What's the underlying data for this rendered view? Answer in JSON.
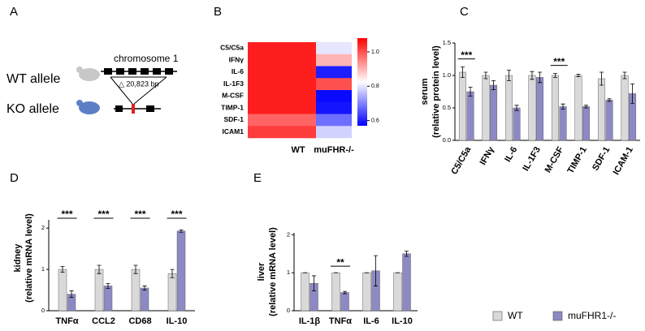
{
  "figure": {
    "panel_labels": [
      "A",
      "B",
      "C",
      "D",
      "E"
    ],
    "diagram": {
      "chromosome": "chromosome 1",
      "wt_allele": "WT allele",
      "ko_allele": "KO allele",
      "deletion": "△ 20,823 bp"
    }
  },
  "chart_data": [
    {
      "type": "heatmap",
      "rows": [
        "C5/C5a",
        "IFNγ",
        "IL-6",
        "IL-1F3",
        "M-CSF",
        "TIMP-1",
        "SDF-1",
        "ICAM1"
      ],
      "columns": [
        "WT",
        "muFHR-/-"
      ],
      "values": [
        [
          1.05,
          0.8
        ],
        [
          1.05,
          0.9
        ],
        [
          1.05,
          0.6
        ],
        [
          1.05,
          1.0
        ],
        [
          1.05,
          0.58
        ],
        [
          1.05,
          0.59
        ],
        [
          0.98,
          0.68
        ],
        [
          1.02,
          0.78
        ]
      ],
      "zlim": [
        0.57,
        1.08
      ],
      "zticks": [
        {
          "value": 1.0,
          "label": "1.0"
        },
        {
          "value": 0.8,
          "label": "0.8"
        },
        {
          "value": 0.6,
          "label": "0.6"
        }
      ],
      "colormap": [
        "#0000ff",
        "#ffffff",
        "#ff0000"
      ]
    },
    {
      "type": "bar",
      "ylabel": [
        "serum",
        "(relative protein level)"
      ],
      "categories": [
        "C5/C5a",
        "IFNγ",
        "IL-6",
        "IL-1F3",
        "M-CSF",
        "TIMP-1",
        "SDF-1",
        "ICAM-1"
      ],
      "series": [
        {
          "color": "#d9d9d9",
          "values": [
            1.05,
            1.0,
            1.0,
            1.0,
            1.0,
            1.0,
            0.95,
            1.0
          ],
          "errors": [
            0.08,
            0.05,
            0.08,
            0.06,
            0.03,
            0.02,
            0.1,
            0.05
          ]
        },
        {
          "color": "#8c89c4",
          "values": [
            0.75,
            0.85,
            0.5,
            0.97,
            0.52,
            0.52,
            0.62,
            0.72
          ],
          "errors": [
            0.07,
            0.07,
            0.04,
            0.08,
            0.04,
            0.02,
            0.02,
            0.15
          ]
        }
      ],
      "ylim": [
        0,
        1.5
      ],
      "yticks": [
        {
          "value": 0,
          "label": "0.0"
        },
        0.5,
        {
          "value": 1,
          "label": "1.0"
        },
        1.5
      ],
      "significance": [
        "***",
        null,
        null,
        null,
        "***",
        null,
        null,
        null
      ]
    },
    {
      "type": "bar",
      "ylabel": [
        "kidney",
        "(relative mRNA level)"
      ],
      "categories": [
        "TNFα",
        "CCL2",
        "CD68",
        "IL-10"
      ],
      "series": [
        {
          "color": "#d9d9d9",
          "values": [
            1.0,
            1.0,
            1.0,
            0.9
          ],
          "errors": [
            0.07,
            0.1,
            0.1,
            0.1
          ]
        },
        {
          "color": "#8c89c4",
          "values": [
            0.4,
            0.6,
            0.55,
            1.93
          ],
          "errors": [
            0.08,
            0.06,
            0.05,
            0.03
          ]
        }
      ],
      "ylim": [
        0,
        2.2
      ],
      "yticks": [
        0,
        1,
        2
      ],
      "significance": [
        "***",
        "***",
        "***",
        "***"
      ]
    },
    {
      "type": "bar",
      "ylabel": [
        "liver",
        "(relative mRNA level)"
      ],
      "categories": [
        "IL-1β",
        "TNFα",
        "IL-6",
        "IL-10"
      ],
      "series": [
        {
          "name": "WT",
          "color": "#d9d9d9",
          "values": [
            1,
            1,
            1,
            1
          ],
          "errors": [
            0,
            0,
            0,
            0
          ]
        },
        {
          "name": "muFHR1-/-",
          "color": "#8c89c4",
          "values": [
            0.72,
            0.48,
            1.05,
            1.5
          ],
          "errors": [
            0.2,
            0.03,
            0.4,
            0.07
          ]
        }
      ],
      "ylim": [
        0,
        2.05
      ],
      "yticks": [
        0,
        1,
        2
      ],
      "significance": [
        null,
        "**",
        null,
        null
      ]
    }
  ]
}
